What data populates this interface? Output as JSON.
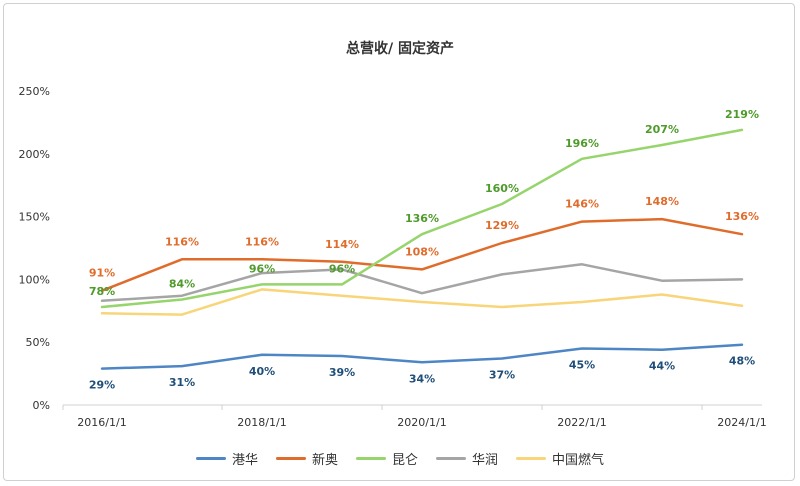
{
  "chart_data": {
    "type": "line",
    "title": "总营收/ 固定资产",
    "x": [
      "2016/1/1",
      "2017/1/1",
      "2018/1/1",
      "2019/1/1",
      "2020/1/1",
      "2021/1/1",
      "2022/1/1",
      "2023/1/1",
      "2024/1/1"
    ],
    "x_tick_labels": [
      "2016/1/1",
      "2018/1/1",
      "2020/1/1",
      "2022/1/1",
      "2024/1/1"
    ],
    "ylim": [
      0,
      250
    ],
    "y_ticks": [
      "0%",
      "50%",
      "100%",
      "150%",
      "200%",
      "250%"
    ],
    "grid": false,
    "legend_position": "bottom",
    "series": [
      {
        "name": "港华",
        "color": "#4e86c5",
        "values": [
          29,
          31,
          40,
          39,
          34,
          37,
          45,
          44,
          48
        ],
        "labels": [
          "29%",
          "31%",
          "40%",
          "39%",
          "34%",
          "37%",
          "45%",
          "44%",
          "48%"
        ],
        "label_color": "#1f4e79"
      },
      {
        "name": "新奥",
        "color": "#e06c2c",
        "values": [
          91,
          116,
          116,
          114,
          108,
          129,
          146,
          148,
          136
        ],
        "labels": [
          "91%",
          "116%",
          "116%",
          "114%",
          "108%",
          "129%",
          "146%",
          "148%",
          "136%"
        ],
        "label_color": "#e06c2c"
      },
      {
        "name": "昆仑",
        "color": "#96d46c",
        "values": [
          78,
          84,
          96,
          96,
          136,
          160,
          196,
          207,
          219
        ],
        "labels": [
          "78%",
          "84%",
          "96%",
          "96%",
          "136%",
          "160%",
          "196%",
          "207%",
          "219%"
        ],
        "label_color": "#4e9a2a"
      },
      {
        "name": "华润",
        "color": "#a5a5a5",
        "values": [
          83,
          87,
          105,
          108,
          89,
          104,
          112,
          99,
          100
        ],
        "labels": [],
        "label_color": "#888888"
      },
      {
        "name": "中国燃气",
        "color": "#f9d57a",
        "values": [
          73,
          72,
          92,
          87,
          82,
          78,
          82,
          88,
          79
        ],
        "labels": [],
        "label_color": "#c9a43a"
      }
    ]
  }
}
